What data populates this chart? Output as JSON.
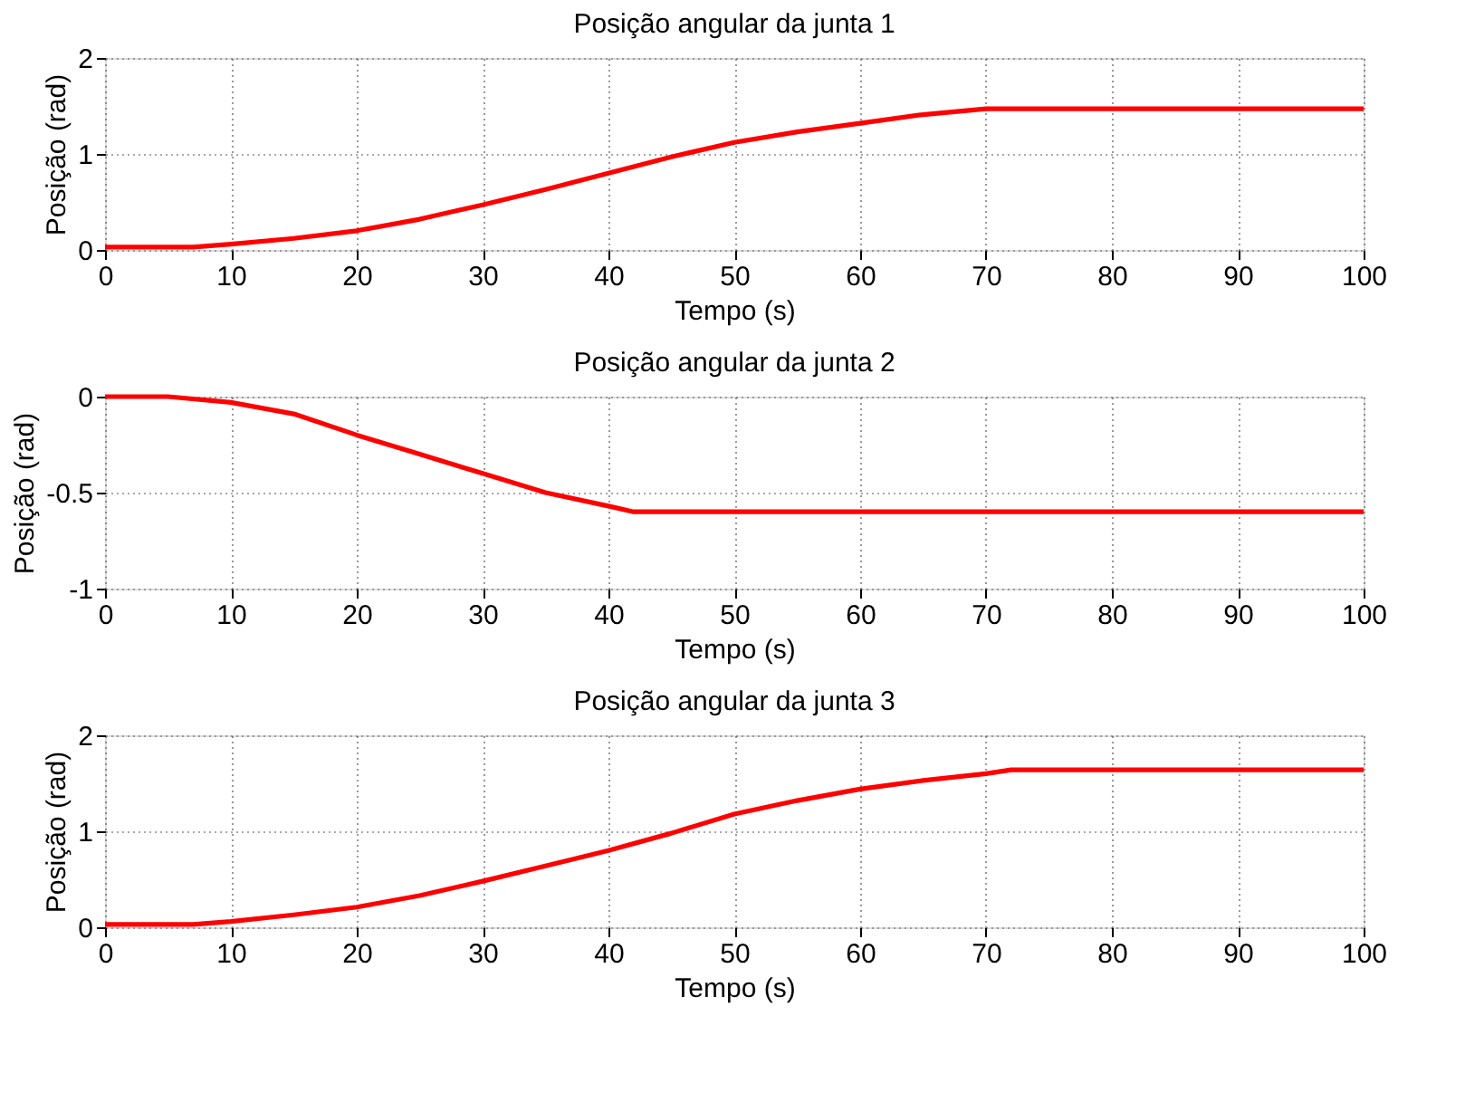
{
  "chart_data": [
    {
      "type": "line",
      "title": "Posição angular da junta 1",
      "xlabel": "Tempo (s)",
      "ylabel": "Posição (rad)",
      "x": [
        0,
        7,
        10,
        15,
        20,
        25,
        30,
        35,
        40,
        45,
        50,
        55,
        60,
        65,
        70,
        80,
        90,
        100
      ],
      "series": [
        {
          "color": "#ff0000",
          "values": [
            0.03,
            0.03,
            0.06,
            0.12,
            0.2,
            0.32,
            0.47,
            0.63,
            0.8,
            0.97,
            1.12,
            1.23,
            1.32,
            1.41,
            1.47,
            1.47,
            1.47,
            1.47
          ]
        }
      ],
      "xlim": [
        0,
        100
      ],
      "xticks": [
        0,
        10,
        20,
        30,
        40,
        50,
        60,
        70,
        80,
        90,
        100
      ],
      "ylim": [
        0,
        2
      ],
      "yticks": [
        0,
        1,
        2
      ],
      "grid": true,
      "line_style": "solid",
      "marker": "none"
    },
    {
      "type": "line",
      "title": "Posição angular da junta 2",
      "xlabel": "Tempo (s)",
      "ylabel": "Posição (rad)",
      "x": [
        0,
        5,
        10,
        15,
        20,
        25,
        30,
        35,
        40,
        42,
        50,
        60,
        70,
        80,
        90,
        100
      ],
      "series": [
        {
          "color": "#ff0000",
          "values": [
            0,
            0,
            -0.03,
            -0.09,
            -0.2,
            -0.3,
            -0.4,
            -0.5,
            -0.57,
            -0.6,
            -0.6,
            -0.6,
            -0.6,
            -0.6,
            -0.6,
            -0.6
          ]
        }
      ],
      "xlim": [
        0,
        100
      ],
      "xticks": [
        0,
        10,
        20,
        30,
        40,
        50,
        60,
        70,
        80,
        90,
        100
      ],
      "ylim": [
        -1,
        0
      ],
      "yticks": [
        -1,
        -0.5,
        0
      ],
      "grid": true,
      "line_style": "solid",
      "marker": "none"
    },
    {
      "type": "line",
      "title": "Posição angular da junta 3",
      "xlabel": "Tempo (s)",
      "ylabel": "Posição (rad)",
      "x": [
        0,
        7,
        10,
        15,
        20,
        25,
        30,
        35,
        40,
        45,
        50,
        55,
        60,
        65,
        70,
        72,
        80,
        90,
        100
      ],
      "series": [
        {
          "color": "#ff0000",
          "values": [
            0.03,
            0.03,
            0.06,
            0.13,
            0.21,
            0.33,
            0.48,
            0.64,
            0.8,
            0.98,
            1.18,
            1.32,
            1.44,
            1.53,
            1.6,
            1.64,
            1.64,
            1.64,
            1.64
          ]
        }
      ],
      "xlim": [
        0,
        100
      ],
      "xticks": [
        0,
        10,
        20,
        30,
        40,
        50,
        60,
        70,
        80,
        90,
        100
      ],
      "ylim": [
        0,
        2
      ],
      "yticks": [
        0,
        1,
        2
      ],
      "grid": true,
      "line_style": "solid",
      "marker": "none"
    }
  ]
}
